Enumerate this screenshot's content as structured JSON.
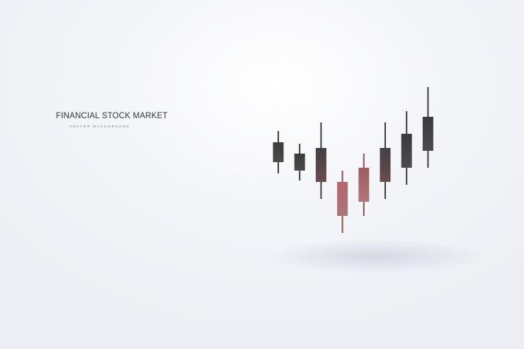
{
  "title": "FINANCIAL STOCK MARKET",
  "subtitle": "VECTOR BACKGROUND",
  "chart_data": {
    "type": "candlestick",
    "title": "FINANCIAL STOCK MARKET",
    "subtitle": "VECTOR BACKGROUND",
    "xlabel": "",
    "ylabel": "",
    "grid": false,
    "legend": "none",
    "colors": {
      "up": "#444446",
      "down": "#b36b6e"
    },
    "candles": [
      {
        "open": 0.62,
        "close": 0.76,
        "high": 0.84,
        "low": 0.54,
        "color": "#444446"
      },
      {
        "open": 0.56,
        "close": 0.68,
        "high": 0.75,
        "low": 0.49,
        "color": "#444446"
      },
      {
        "open": 0.48,
        "close": 0.72,
        "high": 0.9,
        "low": 0.36,
        "color": "#444446"
      },
      {
        "open": 0.48,
        "close": 0.24,
        "high": 0.56,
        "low": 0.12,
        "color": "#b36b6e"
      },
      {
        "open": 0.34,
        "close": 0.58,
        "high": 0.68,
        "low": 0.24,
        "color": "#b36b6e"
      },
      {
        "open": 0.48,
        "close": 0.72,
        "high": 0.9,
        "low": 0.36,
        "color": "#444446"
      },
      {
        "open": 0.58,
        "close": 0.82,
        "high": 0.98,
        "low": 0.46,
        "color": "#444446"
      },
      {
        "open": 0.7,
        "close": 0.94,
        "high": 1.15,
        "low": 0.58,
        "color": "#444446"
      }
    ]
  }
}
